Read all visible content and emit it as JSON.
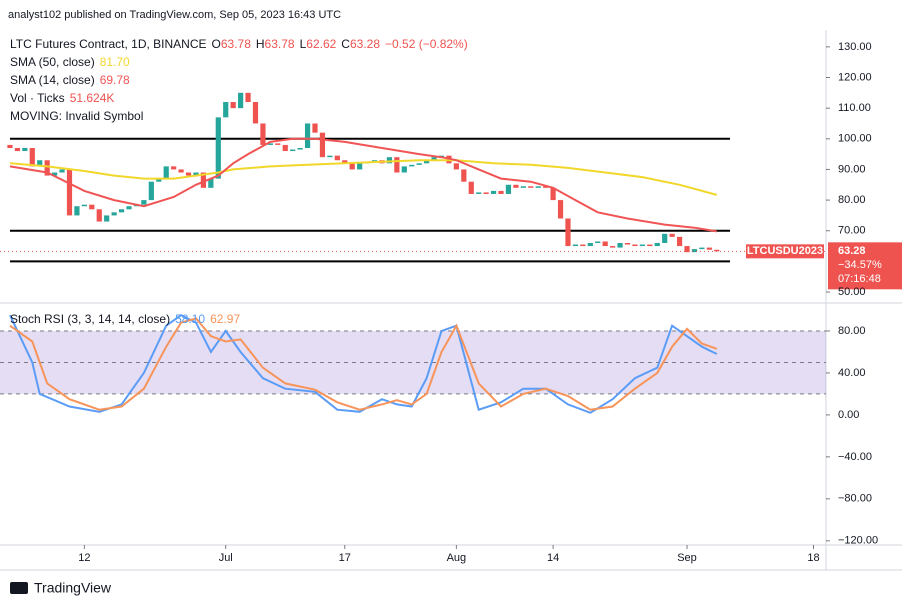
{
  "header": {
    "publisher": "analyst102 published on TradingView.com, Sep 05, 2023 16:43 UTC"
  },
  "footer": {
    "brand": "TradingView"
  },
  "chart_data": [
    {
      "type": "candlestick",
      "legend": {
        "symbol": "LTC Futures Contract, 1D, BINANCE",
        "ohlc": [
          {
            "label": "O",
            "value": "63.78"
          },
          {
            "label": "H",
            "value": "63.78"
          },
          {
            "label": "L",
            "value": "62.62"
          },
          {
            "label": "C",
            "value": "63.28"
          }
        ],
        "change": "−0.52 (−0.82%)"
      },
      "info_lines": [
        {
          "name": "Vol · Ticks",
          "value": "51.624K"
        },
        {
          "name": "MOVING: Invalid Symbol"
        }
      ],
      "up_color": "#26a69a",
      "down_color": "#ef5350",
      "open": [
        98,
        97,
        96,
        97,
        91,
        93,
        88,
        89,
        90,
        75,
        78,
        78.5,
        77,
        73,
        75,
        76,
        77,
        78,
        78.5,
        80,
        86,
        87,
        91,
        90,
        89,
        88,
        89,
        84,
        87,
        107,
        112,
        110,
        115,
        112,
        105,
        98,
        98.5,
        98,
        96,
        96.5,
        97,
        105,
        102,
        94,
        94.5,
        93,
        92,
        90,
        92,
        92.5,
        93,
        92,
        94,
        89,
        91,
        91.5,
        92,
        93,
        94,
        94.5,
        92,
        90,
        86,
        82,
        82.5,
        82,
        83,
        82,
        85,
        84,
        84.5,
        84,
        84.5,
        84,
        80,
        74,
        65,
        65.5,
        65,
        66,
        66.5,
        65,
        64.5,
        66,
        65.5,
        65,
        65.5,
        65,
        66,
        69,
        68,
        65,
        63,
        64,
        64.5,
        63.78
      ],
      "close": [
        97,
        96,
        97,
        91,
        93,
        88,
        89,
        90,
        75,
        78,
        78.5,
        77,
        73,
        75,
        76,
        77,
        78,
        78.5,
        80,
        86,
        87,
        91,
        90,
        89,
        88,
        89,
        84,
        87,
        107,
        112,
        110,
        115,
        112,
        105,
        98,
        98.5,
        98,
        96,
        96.5,
        97,
        105,
        102,
        94,
        94.5,
        93,
        92,
        90,
        92,
        92.5,
        93,
        92,
        94,
        89,
        91,
        91.5,
        92,
        93,
        94,
        94.5,
        92,
        90,
        86,
        82,
        82.5,
        82,
        83,
        82,
        85,
        84,
        84.5,
        84,
        84.5,
        84,
        80,
        74,
        65,
        65.5,
        65,
        66,
        66.5,
        65,
        64.5,
        66,
        65.5,
        65,
        65.5,
        65,
        66,
        69,
        68,
        65,
        63,
        64,
        64.5,
        63.8,
        63.28
      ],
      "series": [
        {
          "name": "SMA (50, close)",
          "value_label": "81.70",
          "color": "#f2d72b",
          "x": [
            0,
            5,
            10,
            14,
            18,
            22,
            25,
            28,
            30,
            35,
            40,
            45,
            50,
            55,
            60,
            65,
            70,
            75,
            80,
            85,
            90,
            95
          ],
          "values": [
            92,
            91,
            89.5,
            88,
            87,
            87,
            88,
            89,
            90,
            91,
            91.5,
            92,
            92.5,
            93,
            93,
            92,
            91.5,
            90.5,
            89,
            87.5,
            85,
            81.7
          ]
        },
        {
          "name": "SMA (14, close)",
          "value_label": "69.78",
          "color": "#f05454",
          "x": [
            0,
            5,
            10,
            14,
            18,
            22,
            25,
            28,
            30,
            32,
            35,
            38,
            41,
            45,
            50,
            55,
            58,
            60,
            63,
            66,
            70,
            73,
            76,
            79,
            83,
            88,
            92,
            95
          ],
          "values": [
            91,
            89,
            83,
            80,
            78,
            81,
            85,
            88,
            92,
            95,
            99,
            100,
            100,
            99,
            97,
            95,
            94,
            93,
            90,
            87,
            86,
            84,
            80,
            76,
            74,
            72,
            71,
            69.78
          ]
        }
      ],
      "levels": [
        100,
        70,
        60
      ],
      "level_color": "#000000",
      "price_tag": {
        "symbol": "LTCUSDU2023",
        "price": 63.28,
        "price_label": "63.28",
        "change": "−34.57%",
        "countdown": "07:16:48"
      },
      "ylim": [
        47.4,
        135.5
      ],
      "yticks": [
        {
          "value": 130,
          "label": "130.00"
        },
        {
          "value": 120,
          "label": "120.00"
        },
        {
          "value": 110,
          "label": "110.00"
        },
        {
          "value": 100,
          "label": "100.00"
        },
        {
          "value": 90,
          "label": "90.00"
        },
        {
          "value": 80,
          "label": "80.00"
        },
        {
          "value": 70,
          "label": "70.00"
        },
        {
          "value": 50,
          "label": "50.00"
        }
      ],
      "xlim": [
        -1.34,
        109.68
      ],
      "xticks": [
        {
          "value": 10,
          "label": "12"
        },
        {
          "value": 29,
          "label": "Jul"
        },
        {
          "value": 45,
          "label": "17"
        },
        {
          "value": 60,
          "label": "Aug"
        },
        {
          "value": 73,
          "label": "14"
        },
        {
          "value": 91,
          "label": "Sep"
        },
        {
          "value": 108,
          "label": "18"
        }
      ]
    },
    {
      "type": "line",
      "title": "Stoch RSI (3, 3, 14, 14, close)",
      "band": [
        20,
        80
      ],
      "midline": 50,
      "band_color": "#7e57c2",
      "series": [
        {
          "value_label": "58.10",
          "color": "#5b9cf6",
          "x": [
            0,
            3,
            4,
            8,
            12,
            15,
            18,
            21,
            23,
            25,
            27,
            29,
            31,
            34,
            37,
            41,
            44,
            47,
            50,
            52,
            54,
            56,
            58,
            60,
            63,
            66,
            69,
            72,
            75,
            78,
            81,
            84,
            87,
            89,
            91,
            93,
            95
          ],
          "values": [
            95,
            50,
            20,
            8,
            3,
            10,
            40,
            85,
            95,
            88,
            60,
            80,
            60,
            35,
            25,
            22,
            5,
            3,
            15,
            10,
            8,
            35,
            80,
            85,
            5,
            12,
            25,
            25,
            10,
            2,
            15,
            35,
            45,
            85,
            75,
            65,
            58.1
          ]
        },
        {
          "value_label": "62.97",
          "color": "#f7945a",
          "x": [
            0,
            3,
            5,
            8,
            12,
            15,
            18,
            21,
            23,
            25,
            27,
            29,
            31,
            34,
            37,
            41,
            44,
            47,
            50,
            52,
            54,
            56,
            58,
            60,
            63,
            66,
            69,
            72,
            75,
            78,
            81,
            84,
            87,
            89,
            91,
            93,
            95
          ],
          "values": [
            85,
            70,
            30,
            15,
            5,
            8,
            25,
            65,
            88,
            92,
            75,
            70,
            72,
            45,
            30,
            24,
            12,
            5,
            10,
            14,
            10,
            20,
            60,
            85,
            30,
            8,
            20,
            25,
            18,
            5,
            8,
            25,
            40,
            65,
            82,
            68,
            62.97
          ]
        }
      ],
      "ylim": [
        -124,
        100
      ],
      "yticks": [
        {
          "value": 80,
          "label": "80.00"
        },
        {
          "value": 40,
          "label": "40.00"
        },
        {
          "value": 0,
          "label": "0.00"
        },
        {
          "value": -40,
          "label": "−40.00"
        },
        {
          "value": -80,
          "label": "−80.00"
        },
        {
          "value": -120,
          "label": "−120.00"
        }
      ],
      "xlim": [
        -1.34,
        109.68
      ]
    }
  ]
}
